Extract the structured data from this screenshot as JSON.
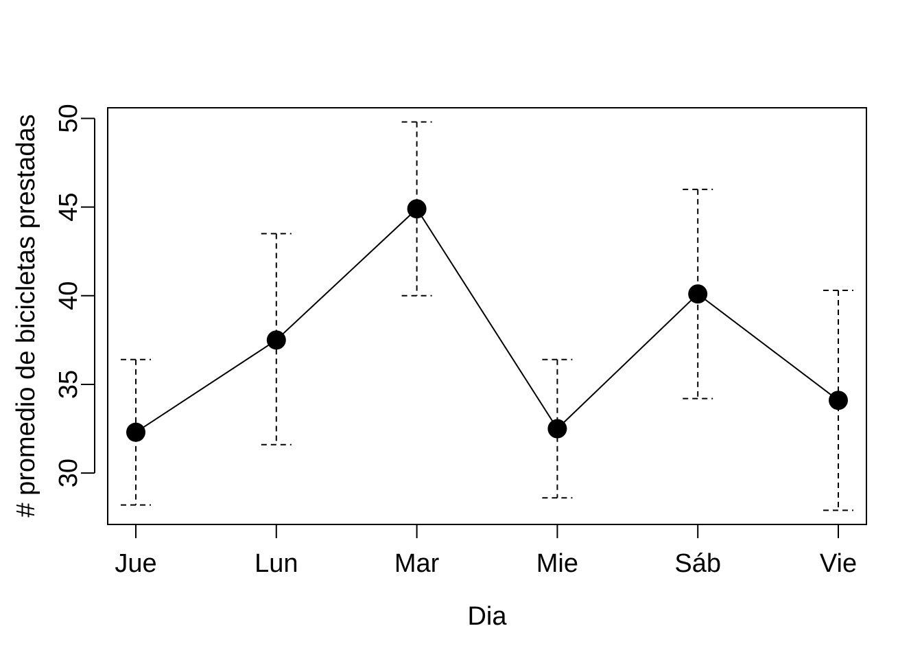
{
  "chart_data": {
    "type": "line",
    "title": "",
    "xlabel": "Dia",
    "ylabel": "# promedio de bicicletas prestadas",
    "categories": [
      "Jue",
      "Lun",
      "Mar",
      "Mie",
      "Sáb",
      "Vie"
    ],
    "series": [
      {
        "values": [
          32.3,
          37.5,
          44.9,
          32.5,
          40.1,
          34.1
        ],
        "lower": [
          28.2,
          31.6,
          40.0,
          28.6,
          34.2,
          27.9
        ],
        "upper": [
          36.4,
          43.5,
          49.8,
          36.4,
          46.0,
          40.3
        ]
      }
    ],
    "ylim": [
      27.1,
      50.6
    ],
    "yticks": [
      30,
      35,
      40,
      45,
      50
    ],
    "ytick_labels": [
      "30",
      "35",
      "40",
      "45",
      "50"
    ],
    "error_bars": "dashed",
    "marker": "filled-circle",
    "grid": false,
    "colors": {
      "line": "#000000",
      "marker": "#000000"
    }
  }
}
